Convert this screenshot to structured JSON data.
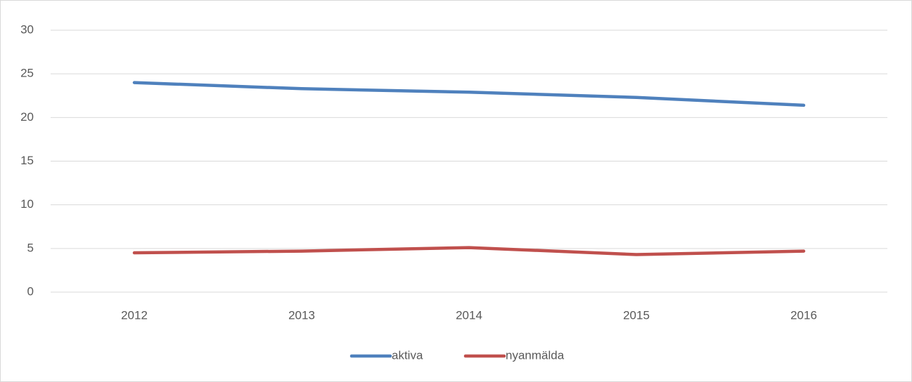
{
  "chart_data": {
    "type": "line",
    "categories": [
      "2012",
      "2013",
      "2014",
      "2015",
      "2016"
    ],
    "series": [
      {
        "name": "aktiva",
        "color": "#4f81bd",
        "values": [
          24.0,
          23.3,
          22.9,
          22.3,
          21.4
        ]
      },
      {
        "name": "nyanmälda",
        "color": "#c0504d",
        "values": [
          4.5,
          4.7,
          5.1,
          4.3,
          4.7
        ]
      }
    ],
    "ylim": [
      0,
      30
    ],
    "yticks": [
      0,
      5,
      10,
      15,
      20,
      25,
      30
    ],
    "grid": true,
    "legend": "bottom"
  }
}
